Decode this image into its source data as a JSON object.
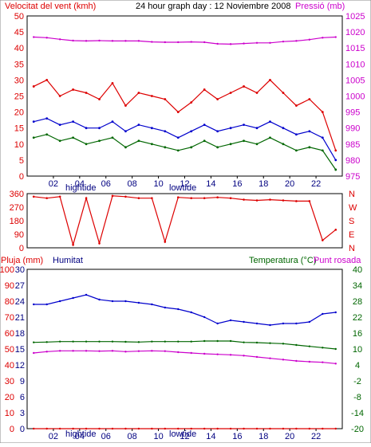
{
  "top_chart": {
    "title": "24 hour graph day : 12 Noviembre 2008",
    "left_label": "Velocitat del vent (kmh)",
    "right_label": "Pressió (mb)",
    "left_ticks": [
      "50",
      "45",
      "40",
      "35",
      "30",
      "25",
      "20",
      "15",
      "10",
      "5",
      "0"
    ],
    "right_ticks": [
      "1025",
      "1020",
      "1015",
      "1010",
      "1005",
      "1000",
      "995",
      "990",
      "985",
      "980",
      "975"
    ],
    "colors": {
      "gust": "#dd0000",
      "wind": "#0000cc",
      "wind_min": "#006600",
      "pressure": "#cc00cc"
    }
  },
  "mid_chart": {
    "left_ticks": [
      "360",
      "270",
      "180",
      "90",
      "0"
    ],
    "right_letters": [
      "N",
      "W",
      "S",
      "E",
      "N"
    ],
    "color": "#dd0000"
  },
  "bottom_chart": {
    "rain_label": "Pluja (mm)",
    "hum_label": "Humitat",
    "temp_label": "Temperatura (°C)",
    "dew_label": "Punt rosada",
    "rain_ticks": [
      "100",
      "90",
      "80",
      "70",
      "60",
      "50",
      "40",
      "30",
      "20",
      "10",
      "0"
    ],
    "hum_ticks": [
      "30",
      "27",
      "24",
      "21",
      "18",
      "15",
      "12",
      "9",
      "6",
      "3",
      "0"
    ],
    "temp_ticks": [
      "40",
      "34",
      "28",
      "22",
      "16",
      "10",
      "4",
      "-2",
      "-8",
      "-14",
      "-20"
    ]
  },
  "x_axis": {
    "ticks": [
      "02",
      "04",
      "06",
      "08",
      "10",
      "12",
      "14",
      "16",
      "18",
      "20",
      "22"
    ],
    "high_tide": "hightide",
    "low_tide": "lowtide"
  },
  "chart_data": [
    {
      "type": "line",
      "title": "24 hour graph day : 12 Noviembre 2008",
      "ylabel": "Velocitat del vent (kmh)",
      "y2label": "Pressió (mb)",
      "ylim": [
        0,
        50
      ],
      "y2lim": [
        975,
        1025
      ],
      "x_hours": [
        0,
        1,
        2,
        3,
        4,
        5,
        6,
        7,
        8,
        9,
        10,
        11,
        12,
        13,
        14,
        15,
        16,
        17,
        18,
        19,
        20,
        21,
        22,
        23
      ],
      "series": [
        {
          "values": [
            28,
            30,
            25,
            27,
            26,
            24,
            29,
            22,
            26,
            25,
            24,
            20,
            23,
            27,
            24,
            26,
            28,
            26,
            30,
            26,
            22,
            24,
            20,
            8
          ]
        },
        {
          "values": [
            17,
            18,
            16,
            17,
            15,
            15,
            17,
            14,
            16,
            15,
            14,
            12,
            14,
            16,
            14,
            15,
            16,
            15,
            17,
            15,
            13,
            14,
            12,
            5
          ]
        },
        {
          "values": [
            12,
            13,
            11,
            12,
            10,
            11,
            12,
            9,
            11,
            10,
            9,
            8,
            9,
            11,
            9,
            10,
            11,
            10,
            12,
            10,
            8,
            9,
            8,
            2
          ]
        },
        {
          "values": [
            1018.4,
            1018.2,
            1017.7,
            1017.3,
            1017.2,
            1017.3,
            1017.2,
            1017.2,
            1017.2,
            1016.9,
            1016.8,
            1016.8,
            1016.9,
            1016.8,
            1016.3,
            1016.2,
            1016.4,
            1016.6,
            1016.6,
            1017.0,
            1017.2,
            1017.6,
            1018.2,
            1018.4
          ]
        }
      ]
    },
    {
      "type": "line",
      "ylim": [
        0,
        360
      ],
      "x_hours": [
        0,
        1,
        2,
        3,
        4,
        5,
        6,
        7,
        8,
        9,
        10,
        11,
        12,
        13,
        14,
        15,
        16,
        17,
        18,
        19,
        20,
        21,
        22,
        23
      ],
      "series": [
        {
          "values": [
            340,
            330,
            340,
            20,
            330,
            30,
            345,
            340,
            330,
            330,
            40,
            335,
            330,
            330,
            335,
            330,
            320,
            315,
            320,
            315,
            310,
            310,
            50,
            120
          ]
        }
      ]
    },
    {
      "type": "line",
      "y_rain_lim": [
        0,
        100
      ],
      "y_hum_lim": [
        0,
        30
      ],
      "y_temp_lim": [
        -20,
        40
      ],
      "x_hours": [
        0,
        1,
        2,
        3,
        4,
        5,
        6,
        7,
        8,
        9,
        10,
        11,
        12,
        13,
        14,
        15,
        16,
        17,
        18,
        19,
        20,
        21,
        22,
        23
      ],
      "series": [
        {
          "name": "Pluja (mm)",
          "values": [
            0,
            0,
            0,
            0,
            0,
            0,
            0,
            0,
            0,
            0,
            0,
            0,
            0,
            0,
            0,
            0,
            0,
            0,
            0,
            0,
            0,
            0,
            0,
            0
          ]
        },
        {
          "name": "Humitat",
          "values": [
            78,
            78,
            80,
            82,
            84,
            81,
            80,
            80,
            79,
            78,
            76,
            75,
            73,
            70,
            66,
            68,
            67,
            66,
            65,
            66,
            66,
            67,
            72,
            73
          ]
        },
        {
          "name": "Temperatura (°C)",
          "values": [
            12.5,
            12.6,
            12.8,
            12.8,
            12.8,
            12.8,
            12.8,
            12.7,
            12.6,
            12.8,
            12.8,
            12.8,
            12.8,
            13,
            13,
            13,
            12.5,
            12.4,
            12.2,
            12,
            11.5,
            11,
            10.5,
            10
          ]
        },
        {
          "name": "Punt rosada",
          "values": [
            8.5,
            9.0,
            9.3,
            9.3,
            9.3,
            9.2,
            9.3,
            9.0,
            9.2,
            9.3,
            9.2,
            8.8,
            8.5,
            8.2,
            8.0,
            7.8,
            7.5,
            7.0,
            6.5,
            6.0,
            5.5,
            5.2,
            5.0,
            4.5
          ]
        }
      ]
    }
  ]
}
